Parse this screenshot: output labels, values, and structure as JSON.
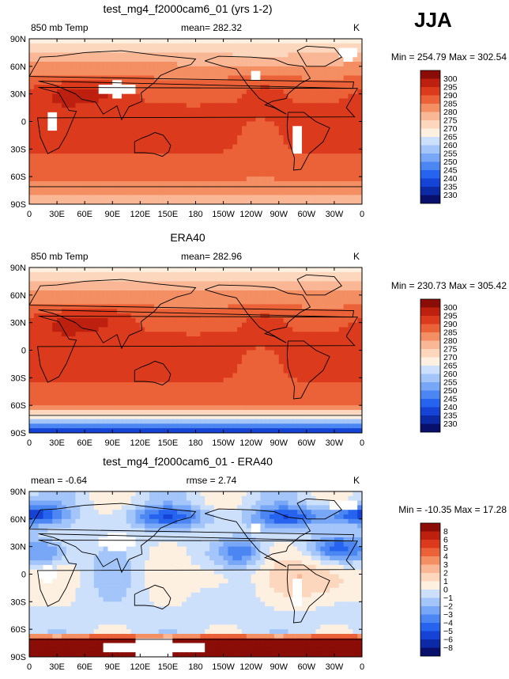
{
  "season": "JJA",
  "chart_data": [
    {
      "type": "heatmap",
      "title": "test_mg4_f2000cam6_01 (yrs 1-2)",
      "left_label": "850 mb Temp",
      "mean_label": "mean= 282.32",
      "units": "K",
      "minmax_label": "Min = 254.79 Max = 302.54",
      "field": "model",
      "levels": [
        230,
        235,
        240,
        245,
        250,
        255,
        260,
        265,
        270,
        275,
        280,
        285,
        290,
        295,
        300
      ],
      "level_labels": [
        "300",
        "295",
        "290",
        "285",
        "280",
        "275",
        "270",
        "265",
        "260",
        "255",
        "250",
        "245",
        "240",
        "235",
        "230"
      ],
      "colors": [
        "#08106b",
        "#0c2aa6",
        "#1443d6",
        "#2663ee",
        "#4c86f2",
        "#77a7f6",
        "#a3c5f9",
        "#cde0fb",
        "#fdf0e0",
        "#fcd7bd",
        "#fab795",
        "#f48e63",
        "#ec6238",
        "#dc3a1c",
        "#be2010",
        "#8b0d08"
      ],
      "x_ticks": [
        "0",
        "30E",
        "60E",
        "90E",
        "120E",
        "150E",
        "180",
        "150W",
        "120W",
        "90W",
        "60W",
        "30W",
        "0"
      ],
      "y_ticks": [
        "90N",
        "60N",
        "30N",
        "0",
        "30S",
        "60S",
        "90S"
      ]
    },
    {
      "type": "heatmap",
      "title": "ERA40",
      "left_label": "850 mb Temp",
      "mean_label": "mean= 282.96",
      "units": "K",
      "minmax_label": "Min = 230.73 Max = 305.42",
      "field": "obs",
      "levels": [
        230,
        235,
        240,
        245,
        250,
        255,
        260,
        265,
        270,
        275,
        280,
        285,
        290,
        295,
        300
      ],
      "level_labels": [
        "300",
        "295",
        "290",
        "285",
        "280",
        "275",
        "270",
        "265",
        "260",
        "255",
        "250",
        "245",
        "240",
        "235",
        "230"
      ],
      "colors": [
        "#08106b",
        "#0c2aa6",
        "#1443d6",
        "#2663ee",
        "#4c86f2",
        "#77a7f6",
        "#a3c5f9",
        "#cde0fb",
        "#fdf0e0",
        "#fcd7bd",
        "#fab795",
        "#f48e63",
        "#ec6238",
        "#dc3a1c",
        "#be2010",
        "#8b0d08"
      ],
      "x_ticks": [
        "0",
        "30E",
        "60E",
        "90E",
        "120E",
        "150E",
        "180",
        "150W",
        "120W",
        "90W",
        "60W",
        "30W",
        "0"
      ],
      "y_ticks": [
        "90N",
        "60N",
        "30N",
        "0",
        "30S",
        "60S",
        "90S"
      ]
    },
    {
      "type": "heatmap",
      "title": "test_mg4_f2000cam6_01 - ERA40",
      "left_label": "mean =   -0.64",
      "mean_label": "rmse =    2.74",
      "units": "K",
      "minmax_label": "Min = -10.35 Max =   17.28",
      "field": "diff",
      "levels": [
        -8,
        -6,
        -5,
        -4,
        -3,
        -2,
        -1,
        0,
        1,
        2,
        3,
        4,
        5,
        6,
        8
      ],
      "level_labels": [
        "8",
        "6",
        "5",
        "4",
        "3",
        "2",
        "1",
        "0",
        "−1",
        "−2",
        "−3",
        "−4",
        "−5",
        "−6",
        "−8"
      ],
      "colors": [
        "#08106b",
        "#0c2aa6",
        "#1443d6",
        "#2663ee",
        "#4c86f2",
        "#77a7f6",
        "#a3c5f9",
        "#cde0fb",
        "#fdf0e0",
        "#fcd7bd",
        "#fab795",
        "#f48e63",
        "#ec6238",
        "#dc3a1c",
        "#be2010",
        "#8b0d08"
      ],
      "x_ticks": [
        "0",
        "30E",
        "60E",
        "90E",
        "120E",
        "150E",
        "180",
        "150W",
        "120W",
        "90W",
        "60W",
        "30W",
        "0"
      ],
      "y_ticks": [
        "90N",
        "60N",
        "30N",
        "0",
        "30S",
        "60S",
        "90S"
      ]
    }
  ]
}
